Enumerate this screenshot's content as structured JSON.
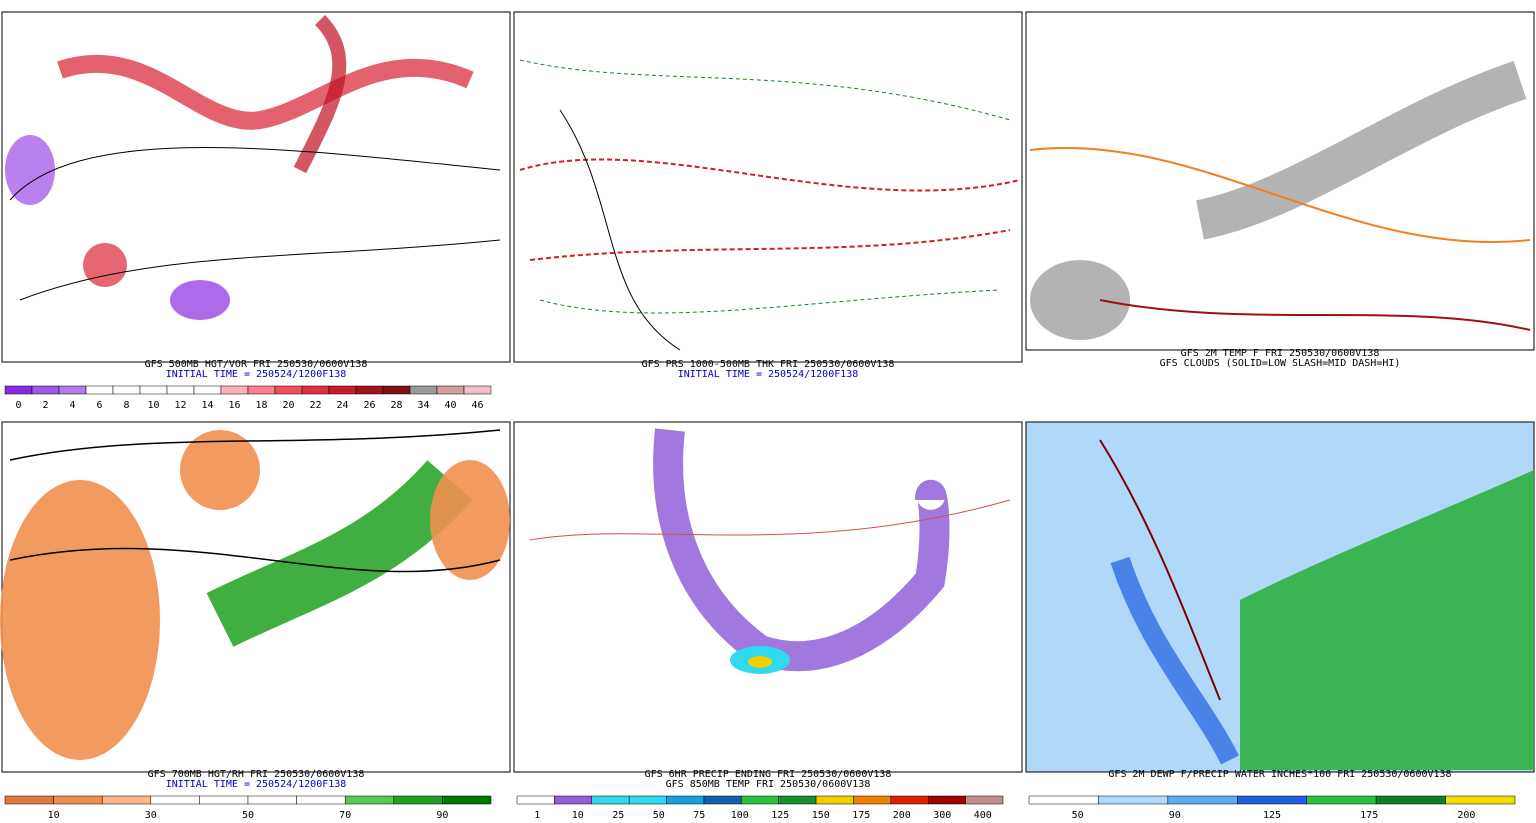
{
  "panels": [
    {
      "caption": [
        "GFS 500MB HGT/VOR FRI 250530/0600V138",
        "INITIAL TIME = 250524/1200F138"
      ],
      "colorbar": {
        "labels": [
          "0",
          "2",
          "4",
          "6",
          "8",
          "10",
          "12",
          "14",
          "16",
          "18",
          "20",
          "22",
          "24",
          "26",
          "28",
          "34",
          "40",
          "46"
        ],
        "colors": [
          "#8a2be2",
          "#9b59e6",
          "#b07ee8",
          "#ffffff",
          "#ffffff",
          "#ffffff",
          "#ffffff",
          "#ffffff",
          "#ffb0b8",
          "#ff8090",
          "#f05060",
          "#e03040",
          "#c81c2c",
          "#a01020",
          "#801018",
          "#9a9a9a",
          "#d0a0a0",
          "#f0c0c8"
        ]
      }
    },
    {
      "caption": [
        "GFS PRS 1000-500MB THK FRI 250530/0600V138",
        "INITIAL TIME = 250524/1200F138"
      ]
    },
    {
      "caption": [
        "GFS 2M TEMP F FRI 250530/0600V138",
        "GFS CLOUDS (SOLID=LOW SLASH=MID DASH=HI)"
      ]
    },
    {
      "caption": [
        "GFS 700MB HGT/RH FRI 250530/0600V138",
        "INITIAL TIME = 250524/1200F138"
      ],
      "colorbar": {
        "labels": [
          "10",
          "30",
          "50",
          "70",
          "90"
        ],
        "colors": [
          "#e07840",
          "#f09050",
          "#f8b888",
          "#ffffff",
          "#ffffff",
          "#ffffff",
          "#ffffff",
          "#58c858",
          "#20a020",
          "#007800"
        ]
      }
    },
    {
      "caption": [
        "GFS 6HR PRECIP ENDING FRI 250530/0600V138",
        "GFS 850MB TEMP FRI 250530/0600V138"
      ],
      "colorbar": {
        "labels": [
          "1",
          "10",
          "25",
          "50",
          "75",
          "100",
          "125",
          "150",
          "175",
          "200",
          "300",
          "400"
        ],
        "colors": [
          "#ffffff",
          "#9060d8",
          "#30d8f0",
          "#30d8f0",
          "#18a0d8",
          "#1060b0",
          "#28c040",
          "#109030",
          "#f0d000",
          "#f08000",
          "#e02000",
          "#a00000",
          "#c09090"
        ]
      }
    },
    {
      "caption": [
        "GFS 2M DEWP F/PRECIP WATER INCHES*100 FRI 250530/0600V138"
      ],
      "colorbar": {
        "labels": [
          "50",
          "90",
          "125",
          "175",
          "200"
        ],
        "colors": [
          "#ffffff",
          "#b0d8f8",
          "#60a8f0",
          "#2060e0",
          "#30c040",
          "#108028",
          "#f0e000"
        ]
      }
    }
  ]
}
